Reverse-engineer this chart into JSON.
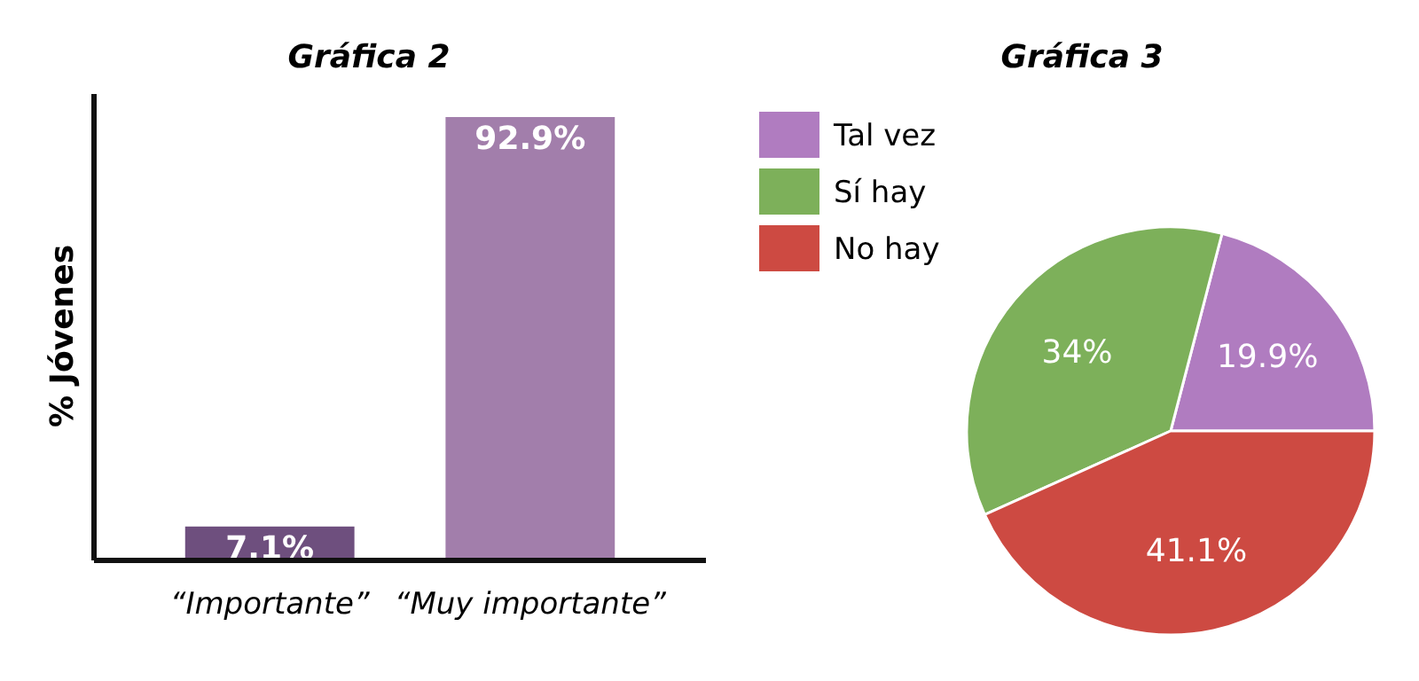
{
  "chart_data": [
    {
      "type": "bar",
      "title": "Gráfica 2",
      "ylabel": "% Jóvenes",
      "categories": [
        "“Importante”",
        "“Muy importante”"
      ],
      "values": [
        7.1,
        92.9
      ],
      "colors": [
        "#6e4f7e",
        "#a27eab"
      ],
      "value_labels": [
        "7.1%",
        "92.9%"
      ]
    },
    {
      "type": "pie",
      "title": "Gráfica 3",
      "categories": [
        "Tal vez",
        "Sí hay",
        "No hay"
      ],
      "values": [
        19.9,
        34,
        41.1
      ],
      "colors": [
        "#b07cc0",
        "#7db05a",
        "#cd4a42"
      ],
      "value_labels": [
        "19.9%",
        "34%",
        "41.1%"
      ],
      "legend": "top left"
    }
  ]
}
